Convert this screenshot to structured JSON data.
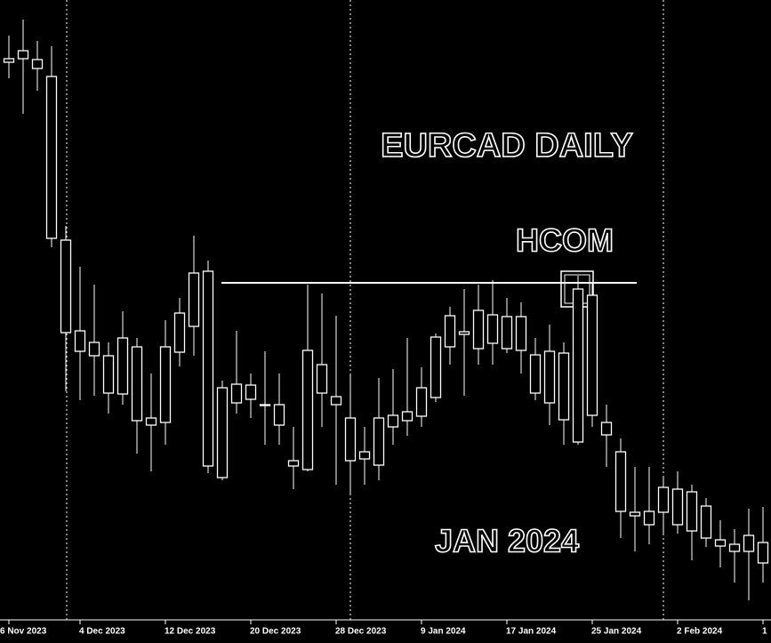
{
  "chart_data": {
    "type": "candlestick",
    "title": "EURCAD DAILY",
    "annotations": [
      "HCOM",
      "JAN 2024"
    ],
    "level": 1.4702,
    "categories": [
      "6 Nov 2023",
      null,
      null,
      null,
      null,
      "4 Dec 2023",
      null,
      null,
      null,
      null,
      null,
      "12 Dec 2023",
      null,
      null,
      null,
      null,
      null,
      "20 Dec 2023",
      null,
      null,
      null,
      null,
      null,
      "28 Dec 2023",
      null,
      null,
      null,
      null,
      null,
      "9 Jan 2024",
      null,
      null,
      null,
      null,
      null,
      "17 Jan 2024",
      null,
      null,
      null,
      null,
      null,
      "25 Jan 2024",
      null,
      null,
      null,
      null,
      null,
      "2 Feb 2024",
      null,
      null,
      null,
      null,
      null,
      "1"
    ],
    "open": [
      1.4954,
      1.4954,
      1.4953,
      1.4934,
      1.475,
      1.4648,
      1.462,
      1.462,
      1.4577,
      1.463,
      1.4542,
      1.4545,
      1.4624,
      1.4653,
      1.4715,
      1.4483,
      1.4588,
      1.4571,
      1.4565,
      1.4565,
      1.4502,
      1.4492,
      1.4578,
      1.4574,
      1.455,
      1.4504,
      1.4497,
      1.454,
      1.4547,
      1.4552,
      1.4573,
      1.463,
      1.4647,
      1.4628,
      1.4666,
      1.4628,
      1.4664,
      1.4621,
      1.4567,
      1.4623,
      1.4523,
      1.4688,
      1.4545,
      1.4512,
      1.4444,
      1.443,
      1.4444,
      1.447,
      1.4467,
      1.4451,
      1.4413,
      1.4408,
      1.44,
      1.441
    ],
    "high": [
      1.498,
      1.4998,
      1.4974,
      1.4968,
      1.4766,
      1.472,
      1.47,
      1.4635,
      1.467,
      1.464,
      1.46,
      1.466,
      1.4685,
      1.4755,
      1.4727,
      1.4592,
      1.4648,
      1.46,
      1.4625,
      1.46,
      1.454,
      1.47,
      1.469,
      1.4665,
      1.46,
      1.454,
      1.4595,
      1.4605,
      1.464,
      1.4607,
      1.4645,
      1.4675,
      1.4695,
      1.47,
      1.4705,
      1.4685,
      1.468,
      1.464,
      1.4655,
      1.4635,
      1.471,
      1.4702,
      1.4565,
      1.4527,
      1.4495,
      1.4495,
      1.4485,
      1.449,
      1.4475,
      1.446,
      1.4435,
      1.4425,
      1.4448,
      1.445
    ],
    "low": [
      1.4932,
      1.4892,
      1.4918,
      1.4742,
      1.458,
      1.457,
      1.4575,
      1.4555,
      1.4565,
      1.451,
      1.449,
      1.452,
      1.4608,
      1.462,
      1.4488,
      1.448,
      1.4555,
      1.455,
      1.452,
      1.452,
      1.447,
      1.449,
      1.454,
      1.4475,
      1.4465,
      1.4475,
      1.448,
      1.452,
      1.453,
      1.454,
      1.4568,
      1.461,
      1.4575,
      1.461,
      1.461,
      1.4623,
      1.46,
      1.457,
      1.4542,
      1.452,
      1.452,
      1.454,
      1.4495,
      1.4415,
      1.44,
      1.4408,
      1.442,
      1.442,
      1.439,
      1.4405,
      1.4382,
      1.4365,
      1.4345,
      1.4365
    ],
    "close": [
      1.495,
      1.4963,
      1.4943,
      1.4752,
      1.4646,
      1.4625,
      1.4635,
      1.4578,
      1.464,
      1.4547,
      1.455,
      1.463,
      1.4668,
      1.4713,
      1.4496,
      1.4584,
      1.4567,
      1.4587,
      1.4564,
      1.4542,
      1.4496,
      1.4626,
      1.461,
      1.4565,
      1.4502,
      1.4512,
      1.455,
      1.4553,
      1.4557,
      1.4584,
      1.4641,
      1.4665,
      1.4644,
      1.4671,
      1.4634,
      1.4664,
      1.4626,
      1.4578,
      1.4625,
      1.4548,
      1.4695,
      1.4553,
      1.4531,
      1.4445,
      1.444,
      1.4445,
      1.4472,
      1.443,
      1.4423,
      1.4415,
      1.4406,
      1.44,
      1.4418,
      1.4387
    ],
    "ylim": [
      1.4325,
      1.502
    ],
    "color": "#ffffff",
    "background": "#000000"
  }
}
